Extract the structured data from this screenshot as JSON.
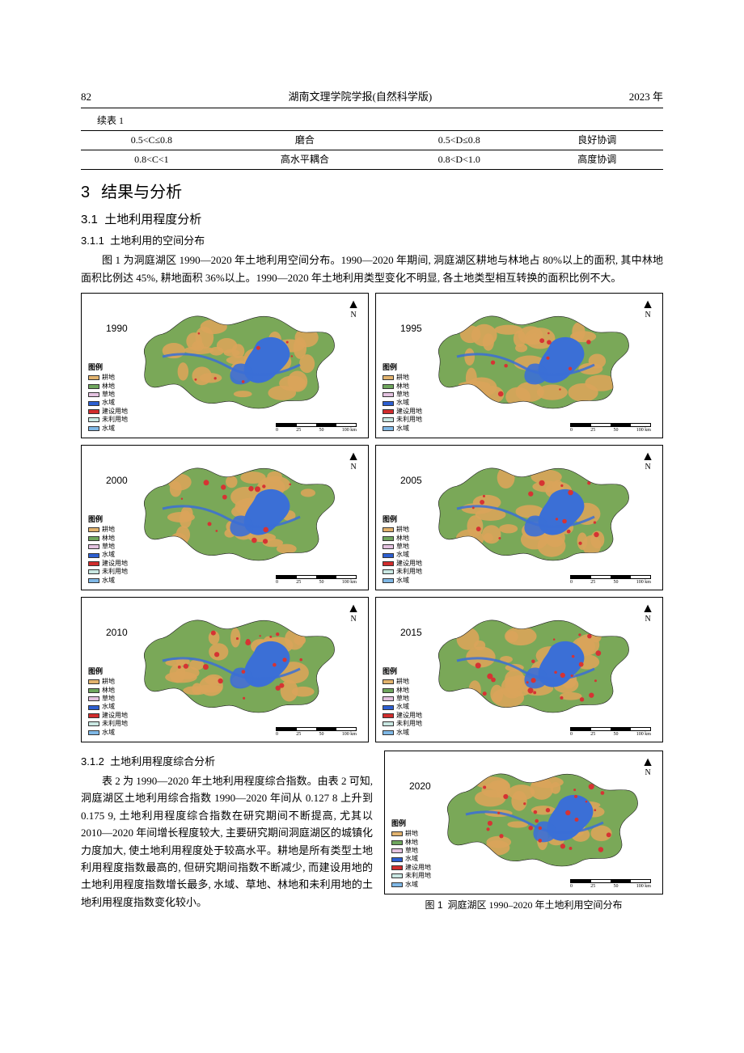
{
  "header": {
    "page_number": "82",
    "journal_title": "湖南文理学院学报(自然科学版)",
    "year_label": "2023 年"
  },
  "cont_table": {
    "caption": "续表 1",
    "rows": [
      [
        "0.5<C≤0.8",
        "磨合",
        "0.5<D≤0.8",
        "良好协调"
      ],
      [
        "0.8<C<1",
        "高水平耦合",
        "0.8<D<1.0",
        "高度协调"
      ]
    ]
  },
  "sec3": {
    "heading": "结果与分析",
    "num": "3",
    "sub31": {
      "num": "3.1",
      "title": "土地利用程度分析",
      "sub311": {
        "num": "3.1.1",
        "title": "土地利用的空间分布",
        "para": "图 1 为洞庭湖区 1990—2020 年土地利用空间分布。1990—2020 年期间, 洞庭湖区耕地与林地占 80%以上的面积, 其中林地面积比例达 45%, 耕地面积 36%以上。1990—2020 年土地利用类型变化不明显, 各土地类型相互转换的面积比例不大。"
      },
      "sub312": {
        "num": "3.1.2",
        "title": "土地利用程度综合分析",
        "para": "表 2 为 1990—2020 年土地利用程度综合指数。由表 2 可知, 洞庭湖区土地利用综合指数 1990—2020 年间从 0.127 8 上升到 0.175 9, 土地利用程度综合指数在研究期间不断提高, 尤其以 2010—2020 年间增长程度较大, 主要研究期间洞庭湖区的城镇化力度加大, 使土地利用程度处于较高水平。耕地是所有类型土地利用程度指数最高的, 但研究期间指数不断减少, 而建设用地的土地利用程度指数增长最多, 水域、草地、林地和未利用地的土地利用程度指数变化较小。"
      }
    }
  },
  "maps": {
    "years": [
      "1990",
      "1995",
      "2000",
      "2005",
      "2010",
      "2015",
      "2020"
    ],
    "north_label": "N",
    "legend_title": "图例",
    "legend_items": [
      {
        "label": "耕地",
        "color": "#e2b36e"
      },
      {
        "label": "林地",
        "color": "#6fa65e"
      },
      {
        "label": "草地",
        "color": "#e4c2e0"
      },
      {
        "label": "水域",
        "color": "#2d5fd1"
      },
      {
        "label": "建设用地",
        "color": "#d12c2c"
      },
      {
        "label": "未利用地",
        "color": "#c9e8e3"
      },
      {
        "label": "水域",
        "color": "#7fb8e6"
      }
    ],
    "scalebar_labels": [
      "0",
      "25",
      "50",
      "100 km"
    ],
    "land_color": "#7aa858",
    "cropland_color": "#d9a45a",
    "water_color": "#3b6fd6",
    "builtup_color": "#d63333",
    "fig_caption_num": "图 1",
    "fig_caption_text": "洞庭湖区 1990–2020 年土地利用空间分布"
  }
}
